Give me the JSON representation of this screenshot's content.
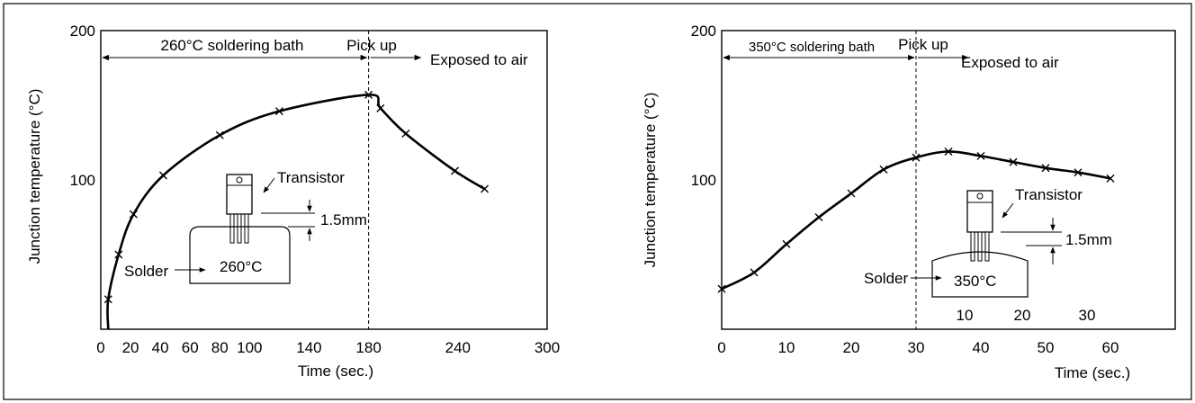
{
  "chart_data": [
    {
      "type": "line",
      "xlabel": "Time (sec.)",
      "ylabel": "Junction temperature (°C)",
      "xlim": [
        0,
        300
      ],
      "ylim": [
        0,
        200
      ],
      "x_ticks": [
        0,
        20,
        40,
        60,
        80,
        100,
        140,
        180,
        240,
        300
      ],
      "y_ticks": [
        100,
        200
      ],
      "x": [
        5,
        12,
        22,
        42,
        80,
        120,
        180,
        188,
        205,
        238,
        258
      ],
      "y": [
        20,
        50,
        77,
        103,
        130,
        146,
        157,
        148,
        131,
        106,
        94
      ],
      "annotations": {
        "bath_label": "260°C soldering bath",
        "pickup_label": "Pick up",
        "air_label": "Exposed to air",
        "pickup_x": 180,
        "transistor_label": "Transistor",
        "depth_label": "1.5mm",
        "solder_label": "Solder",
        "bath_temp_label": "260°C"
      }
    },
    {
      "type": "line",
      "xlabel": "Time (sec.)",
      "ylabel": "Junction temperature (°C)",
      "xlim": [
        0,
        70
      ],
      "ylim": [
        0,
        200
      ],
      "x_ticks": [
        0,
        10,
        20,
        30,
        40,
        50,
        60
      ],
      "y_ticks": [
        100,
        200
      ],
      "x": [
        0,
        5,
        10,
        15,
        20,
        25,
        30,
        35,
        40,
        45,
        50,
        55,
        60
      ],
      "y": [
        27,
        38,
        57,
        75,
        91,
        107,
        115,
        119,
        116,
        112,
        108,
        105,
        101
      ],
      "annotations": {
        "bath_label": "350°C soldering bath",
        "pickup_label": "Pick up",
        "air_label": "Exposed to air",
        "pickup_x": 30,
        "transistor_label": "Transistor",
        "depth_label": "1.5mm",
        "solder_label": "Solder",
        "bath_temp_label": "350°C",
        "stray_ticks": [
          "10",
          "20",
          "30"
        ]
      }
    }
  ]
}
